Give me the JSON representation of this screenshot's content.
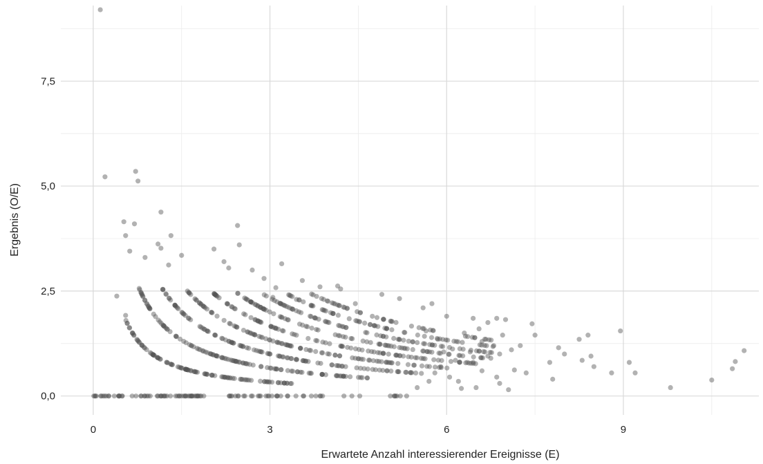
{
  "chart_data": {
    "type": "scatter",
    "xlabel": "Erwartete Anzahl interessierender Ereignisse (E)",
    "ylabel": "Ergebnis (O/E)",
    "xlim": [
      -0.55,
      11.3
    ],
    "ylim": [
      -0.45,
      9.3
    ],
    "x_ticks": [
      0,
      3,
      6,
      9
    ],
    "x_tick_labels": [
      "0",
      "3",
      "6",
      "9"
    ],
    "y_ticks": [
      0,
      2.5,
      5,
      7.5
    ],
    "y_tick_labels": [
      "0,0",
      "2,5",
      "5,0",
      "7,5"
    ],
    "grid": true,
    "legend": "none",
    "point_color": "#555555",
    "point_opacity": 0.45,
    "series": [
      {
        "values_note": "",
        "points": [
          [
            0.12,
            9.2
          ],
          [
            0.2,
            5.22
          ],
          [
            0.72,
            5.35
          ],
          [
            0.76,
            5.12
          ],
          [
            0.52,
            4.15
          ],
          [
            0.55,
            3.82
          ],
          [
            0.62,
            3.45
          ],
          [
            0.7,
            4.1
          ],
          [
            0.88,
            3.3
          ],
          [
            1.15,
            4.38
          ],
          [
            1.1,
            3.62
          ],
          [
            1.15,
            3.52
          ],
          [
            1.32,
            3.82
          ],
          [
            1.28,
            3.12
          ],
          [
            1.5,
            3.35
          ],
          [
            2.05,
            3.5
          ],
          [
            2.22,
            3.2
          ],
          [
            2.3,
            3.05
          ],
          [
            2.45,
            4.06
          ],
          [
            2.48,
            3.6
          ],
          [
            2.7,
            3.0
          ],
          [
            2.9,
            2.8
          ],
          [
            3.1,
            2.58
          ],
          [
            3.2,
            3.15
          ],
          [
            3.05,
            2.35
          ],
          [
            3.45,
            2.3
          ],
          [
            3.55,
            2.75
          ],
          [
            3.7,
            2.15
          ],
          [
            3.85,
            2.6
          ],
          [
            4.15,
            2.62
          ],
          [
            4.2,
            2.55
          ],
          [
            4.45,
            2.2
          ],
          [
            4.9,
            2.42
          ],
          [
            5.2,
            2.32
          ],
          [
            5.6,
            2.1
          ],
          [
            5.75,
            2.2
          ],
          [
            6.0,
            1.9
          ],
          [
            6.45,
            1.85
          ],
          [
            6.7,
            1.75
          ],
          [
            6.85,
            1.85
          ],
          [
            7.0,
            1.82
          ],
          [
            7.45,
            1.72
          ],
          [
            7.5,
            1.45
          ],
          [
            7.75,
            0.8
          ],
          [
            7.8,
            0.4
          ],
          [
            7.9,
            1.15
          ],
          [
            8.0,
            1.0
          ],
          [
            8.25,
            1.35
          ],
          [
            8.3,
            0.85
          ],
          [
            8.4,
            1.45
          ],
          [
            8.45,
            0.95
          ],
          [
            8.5,
            0.7
          ],
          [
            8.8,
            0.55
          ],
          [
            8.95,
            1.55
          ],
          [
            9.1,
            0.8
          ],
          [
            9.2,
            0.55
          ],
          [
            9.8,
            0.2
          ],
          [
            10.5,
            0.38
          ],
          [
            10.85,
            0.65
          ],
          [
            10.9,
            0.82
          ],
          [
            11.05,
            1.08
          ],
          [
            0.4,
            2.38
          ],
          [
            0.55,
            1.92
          ],
          [
            6.3,
            1.5
          ],
          [
            6.55,
            1.6
          ],
          [
            6.6,
            1.3
          ],
          [
            6.8,
            1.2
          ],
          [
            6.95,
            1.45
          ],
          [
            7.1,
            1.1
          ],
          [
            7.25,
            1.2
          ],
          [
            7.15,
            0.62
          ],
          [
            7.35,
            0.55
          ],
          [
            6.5,
            0.2
          ],
          [
            6.9,
            0.3
          ],
          [
            7.05,
            0.15
          ],
          [
            6.1,
            1.12
          ],
          [
            6.2,
            0.35
          ],
          [
            6.25,
            0.18
          ],
          [
            5.5,
            0.2
          ],
          [
            5.7,
            0.35
          ],
          [
            6.05,
            0.45
          ],
          [
            6.35,
            0.8
          ],
          [
            6.6,
            0.6
          ],
          [
            6.75,
            0.9
          ],
          [
            6.85,
            0.45
          ],
          [
            5.8,
            0.55
          ],
          [
            5.9,
            0.7
          ],
          [
            5.95,
            1.05
          ],
          [
            6.15,
            0.85
          ],
          [
            6.4,
            1.05
          ],
          [
            6.65,
            1.05
          ],
          [
            6.45,
            0.8
          ],
          [
            6.7,
            0.95
          ],
          [
            6.9,
            1.0
          ],
          [
            5.85,
            1.35
          ],
          [
            5.65,
            1.55
          ]
        ],
        "hyperbolas": {
          "numerators": [
            1,
            2,
            3,
            4,
            5,
            6,
            7,
            8,
            9
          ],
          "e_ranges": [
            [
              0.55,
              3.4
            ],
            [
              0.78,
              4.7
            ],
            [
              1.18,
              5.6
            ],
            [
              1.6,
              6.2
            ],
            [
              2.05,
              6.5
            ],
            [
              2.45,
              6.7
            ],
            [
              2.9,
              6.9
            ],
            [
              3.3,
              6.9
            ],
            [
              3.7,
              6.8
            ]
          ],
          "points_per_curve": [
            110,
            120,
            110,
            100,
            90,
            80,
            70,
            55,
            45
          ]
        },
        "zero_band": {
          "y": 0,
          "e_segments": [
            [
              0.0,
              1.9
            ],
            [
              2.3,
              3.05
            ],
            [
              3.1,
              3.9
            ],
            [
              4.0,
              5.5
            ]
          ],
          "density": [
            60,
            18,
            14,
            10
          ]
        }
      }
    ]
  }
}
